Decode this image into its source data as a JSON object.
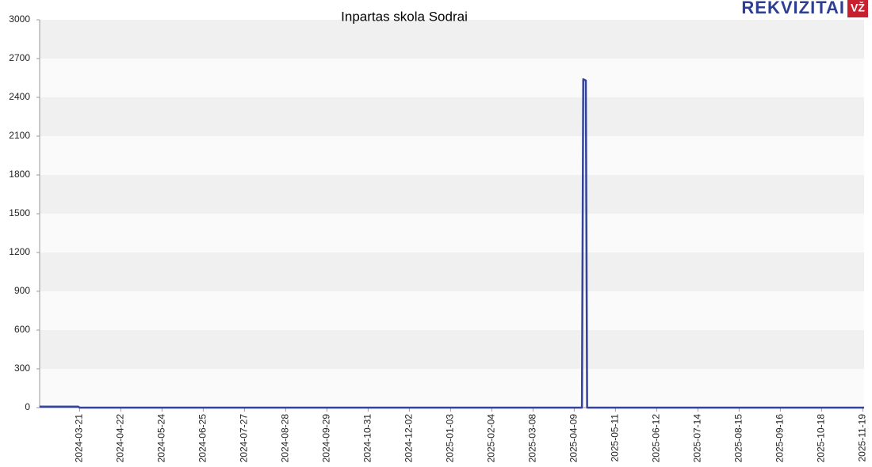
{
  "brand": {
    "name": "REKVIZITAI",
    "badge": "VŽ"
  },
  "chart_data": {
    "type": "line",
    "title": "Inpartas skola Sodrai",
    "x": [
      "2024-02-19",
      "2024-03-20",
      "2024-03-21",
      "2025-04-15",
      "2025-04-16",
      "2025-04-18",
      "2025-04-19",
      "2025-11-20"
    ],
    "series": [
      {
        "name": "Inpartas skola Sodrai",
        "color": "#33449a",
        "values": [
          8,
          8,
          0,
          0,
          2540,
          2530,
          0,
          0
        ]
      }
    ],
    "xlim": [
      "2024-02-19",
      "2025-11-20"
    ],
    "xticks": [
      "2024-03-21",
      "2024-04-22",
      "2024-05-24",
      "2024-06-25",
      "2024-07-27",
      "2024-08-28",
      "2024-09-29",
      "2024-10-31",
      "2024-12-02",
      "2025-01-03",
      "2025-02-04",
      "2025-03-08",
      "2025-04-09",
      "2025-05-11",
      "2025-06-12",
      "2025-07-14",
      "2025-08-15",
      "2025-09-16",
      "2025-10-18",
      "2025-11-19"
    ],
    "ylim": [
      0,
      3000
    ],
    "yticks": [
      0,
      300,
      600,
      900,
      1200,
      1500,
      1800,
      2100,
      2400,
      2700,
      3000
    ],
    "grid": true
  }
}
